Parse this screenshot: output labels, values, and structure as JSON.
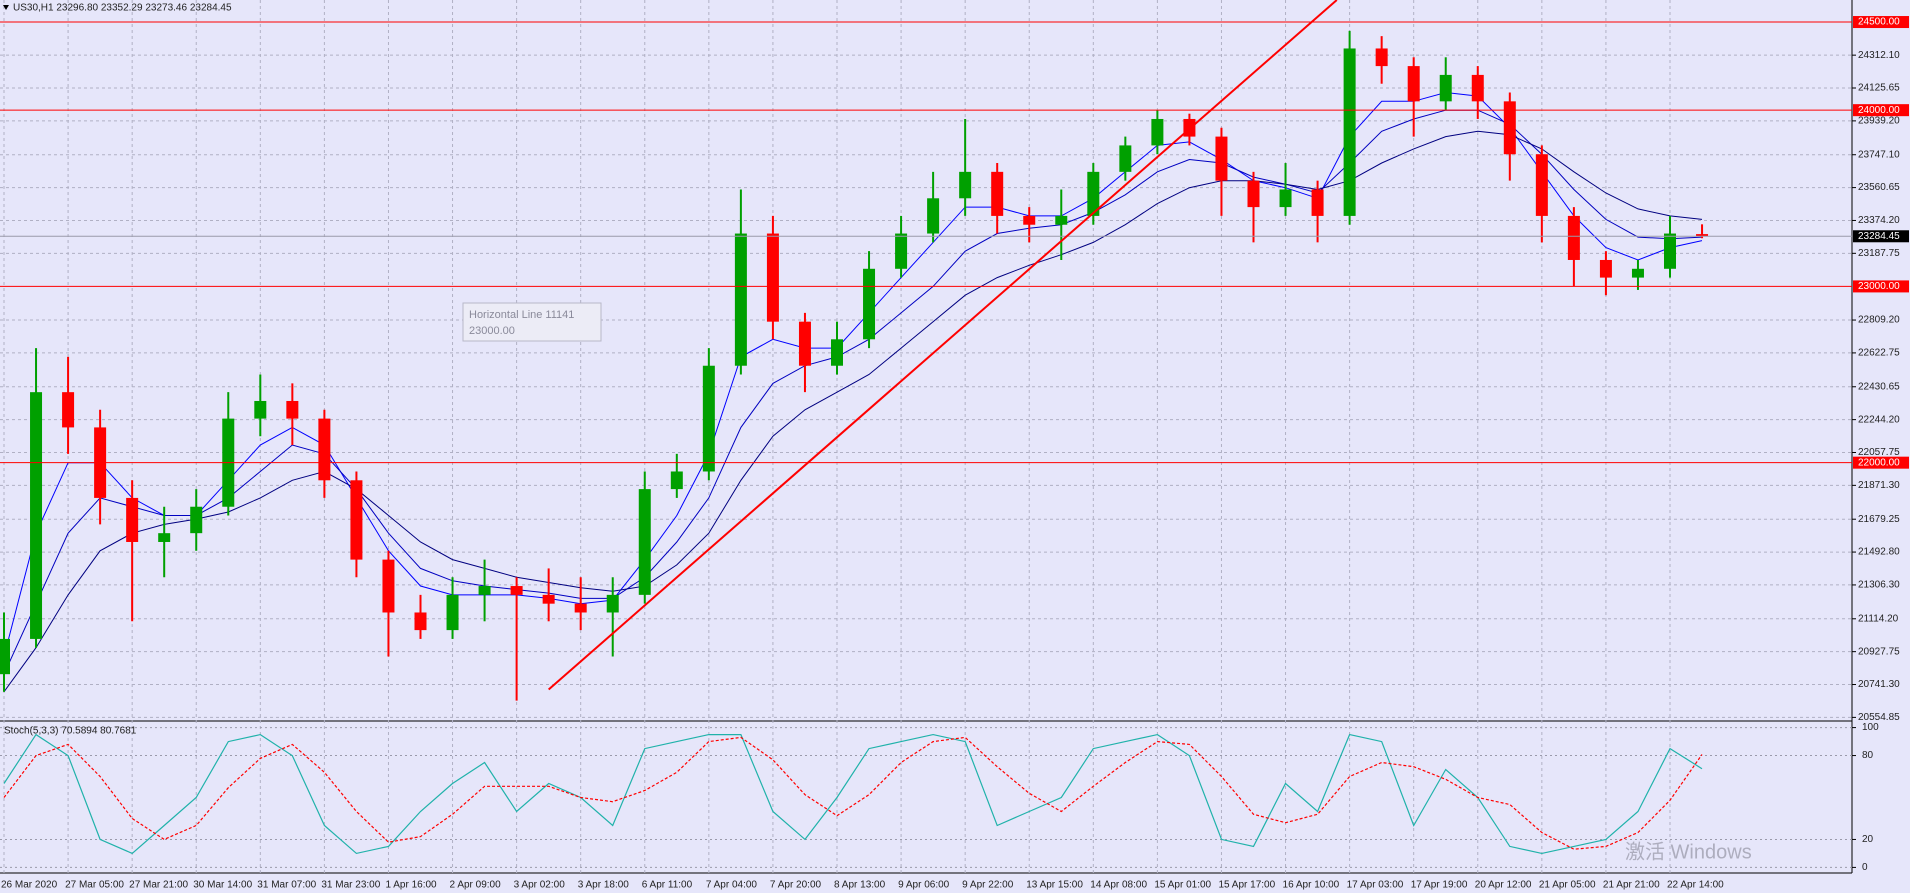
{
  "chart_data": [
    {
      "type": "candlestick",
      "title": "US30,H1  23296.80 23352.29 23273.46 23284.45",
      "categories": [
        "26 Mar 2020",
        null,
        "27 Mar 05:00",
        null,
        "27 Mar 21:00",
        null,
        "30 Mar 14:00",
        null,
        "31 Mar 07:00",
        null,
        "31 Mar 23:00",
        null,
        "1 Apr 16:00",
        null,
        "2 Apr 09:00",
        null,
        "3 Apr 02:00",
        null,
        "3 Apr 18:00",
        null,
        "6 Apr 11:00",
        null,
        "7 Apr 04:00",
        null,
        "7 Apr 20:00",
        null,
        "8 Apr 13:00",
        null,
        "9 Apr 06:00",
        null,
        "9 Apr 22:00",
        null,
        "13 Apr 15:00",
        null,
        "14 Apr 08:00",
        null,
        "15 Apr 01:00",
        null,
        "15 Apr 17:00",
        null,
        "16 Apr 10:00",
        null,
        "17 Apr 03:00",
        null,
        "17 Apr 19:00",
        null,
        "20 Apr 12:00",
        null,
        "21 Apr 05:00",
        null,
        "21 Apr 21:00",
        null,
        "22 Apr 14:00",
        null
      ],
      "open": [
        20800,
        21000,
        22400,
        22200,
        21800,
        21550,
        21600,
        21750,
        22250,
        22350,
        22250,
        21900,
        21450,
        21150,
        21050,
        21250,
        21300,
        21250,
        21200,
        21150,
        21250,
        21850,
        21950,
        22550,
        23300,
        22800,
        22550,
        22700,
        23100,
        23300,
        23500,
        23650,
        23400,
        23350,
        23400,
        23650,
        23800,
        23950,
        23850,
        23600,
        23450,
        23550,
        23400,
        24350,
        24250,
        24050,
        24200,
        24050,
        23750,
        23400,
        23150,
        23050,
        23100,
        23296.8
      ],
      "high": [
        21150,
        22650,
        22600,
        22300,
        21900,
        21750,
        21850,
        22400,
        22500,
        22450,
        22300,
        21950,
        21500,
        21250,
        21350,
        21450,
        21350,
        21400,
        21350,
        21350,
        21950,
        22050,
        22650,
        23550,
        23400,
        22850,
        22800,
        23200,
        23400,
        23650,
        23950,
        23700,
        23450,
        23550,
        23700,
        23850,
        24000,
        23980,
        23900,
        23650,
        23700,
        23600,
        24450,
        24420,
        24300,
        24300,
        24250,
        24100,
        23800,
        23450,
        23200,
        23150,
        23400,
        23352.29
      ],
      "low": [
        20700,
        20950,
        22050,
        21650,
        21100,
        21350,
        21500,
        21700,
        22150,
        22100,
        21800,
        21350,
        20900,
        21000,
        21000,
        21100,
        20650,
        21100,
        21050,
        20900,
        21200,
        21800,
        21900,
        22500,
        22700,
        22400,
        22500,
        22650,
        23050,
        23250,
        23400,
        23300,
        23250,
        23150,
        23350,
        23600,
        23750,
        23800,
        23400,
        23250,
        23400,
        23250,
        23350,
        24150,
        23850,
        24000,
        23950,
        23600,
        23250,
        23000,
        22950,
        22980,
        23050,
        23273.46
      ],
      "close": [
        21000,
        22400,
        22200,
        21800,
        21550,
        21600,
        21750,
        22250,
        22350,
        22250,
        21900,
        21450,
        21150,
        21050,
        21250,
        21300,
        21250,
        21200,
        21150,
        21250,
        21850,
        21950,
        22550,
        23300,
        22800,
        22550,
        22700,
        23100,
        23300,
        23500,
        23650,
        23400,
        23350,
        23400,
        23650,
        23800,
        23950,
        23850,
        23600,
        23450,
        23550,
        23400,
        24350,
        24250,
        24050,
        24200,
        24050,
        23750,
        23400,
        23150,
        23050,
        23100,
        23300,
        23284.45
      ],
      "up_color": "#00a000",
      "down_color": "#ff0000",
      "overlays": [
        {
          "color": "#0000ff",
          "values": [
            20900,
            21600,
            22000,
            22000,
            21800,
            21700,
            21700,
            21900,
            22100,
            22200,
            22100,
            21800,
            21500,
            21300,
            21250,
            21250,
            21250,
            21230,
            21200,
            21220,
            21450,
            21700,
            22050,
            22600,
            22700,
            22650,
            22650,
            22850,
            23050,
            23250,
            23450,
            23450,
            23400,
            23400,
            23500,
            23650,
            23800,
            23820,
            23720,
            23600,
            23560,
            23500,
            23850,
            24050,
            24050,
            24100,
            24080,
            23900,
            23650,
            23400,
            23220,
            23150,
            23220,
            23260
          ]
        },
        {
          "color": "#0000c0",
          "values": [
            20800,
            21200,
            21600,
            21800,
            21750,
            21700,
            21700,
            21800,
            21950,
            22100,
            22050,
            21850,
            21600,
            21400,
            21330,
            21300,
            21280,
            21260,
            21230,
            21230,
            21350,
            21550,
            21800,
            22200,
            22450,
            22550,
            22600,
            22700,
            22850,
            23000,
            23200,
            23300,
            23330,
            23350,
            23420,
            23520,
            23650,
            23720,
            23700,
            23620,
            23580,
            23530,
            23700,
            23880,
            23950,
            24000,
            24000,
            23920,
            23750,
            23550,
            23380,
            23280,
            23270,
            23280
          ]
        },
        {
          "color": "#000080",
          "values": [
            20700,
            20950,
            21250,
            21500,
            21600,
            21650,
            21680,
            21720,
            21800,
            21900,
            21950,
            21850,
            21700,
            21550,
            21450,
            21400,
            21350,
            21320,
            21290,
            21270,
            21300,
            21420,
            21600,
            21900,
            22150,
            22300,
            22400,
            22500,
            22650,
            22800,
            22950,
            23050,
            23120,
            23180,
            23250,
            23350,
            23470,
            23560,
            23600,
            23600,
            23580,
            23550,
            23600,
            23700,
            23780,
            23850,
            23880,
            23860,
            23780,
            23650,
            23530,
            23440,
            23400,
            23380
          ]
        }
      ],
      "ylim": [
        20540,
        24625
      ],
      "yticks": [
        {
          "value": 24312.1,
          "label": "24312.10"
        },
        24125.65,
        {
          "value": 23939.2,
          "label": "23939.20"
        },
        {
          "value": 23747.1,
          "label": "23747.10"
        },
        23560.65,
        {
          "value": 23374.2,
          "label": "23374.20"
        },
        23187.75,
        {
          "value": 22809.2,
          "label": "22809.20"
        },
        22622.75,
        22430.65,
        {
          "value": 22244.2,
          "label": "22244.20"
        },
        22057.75,
        {
          "value": 21871.3,
          "label": "21871.30"
        },
        21679.25,
        {
          "value": 21492.8,
          "label": "21492.80"
        },
        {
          "value": 21306.3,
          "label": "21306.30"
        },
        {
          "value": 21114.2,
          "label": "21114.20"
        },
        20927.75,
        {
          "value": 20741.3,
          "label": "20741.30"
        },
        20554.85
      ],
      "grid": true,
      "hlines": [
        {
          "value": 24500,
          "label": "24500.00"
        },
        {
          "value": 24000,
          "label": "24000.00"
        },
        {
          "value": 23000,
          "label": "23000.00"
        },
        {
          "value": 22000,
          "label": "22000.00"
        }
      ],
      "hline_color": "#ff0000",
      "last_price": 23284.45,
      "trendline": {
        "x": [
          17,
          41.6
        ],
        "y": [
          20713,
          24625
        ],
        "color": "#ff0000"
      },
      "tooltip": {
        "title": "Horizontal Line 11141",
        "text": "23000.00"
      },
      "watermark": "激活 Windows"
    },
    {
      "type": "line",
      "title": "Stoch(5,3,3) 70.5894 80.7681",
      "series": [
        {
          "color": "#20b2aa",
          "values": [
            60,
            95,
            80,
            20,
            10,
            30,
            50,
            90,
            95,
            80,
            30,
            10,
            15,
            40,
            60,
            75,
            40,
            60,
            50,
            30,
            85,
            90,
            95,
            95,
            40,
            20,
            50,
            85,
            90,
            95,
            90,
            30,
            40,
            50,
            85,
            90,
            95,
            80,
            20,
            15,
            60,
            40,
            95,
            90,
            30,
            70,
            50,
            15,
            10,
            15,
            20,
            40,
            85,
            70.5894
          ]
        },
        {
          "color": "#ff0000",
          "dashed": true,
          "values": [
            50,
            80,
            88,
            65,
            35,
            20,
            30,
            57,
            78,
            88,
            68,
            40,
            18,
            22,
            38,
            58,
            58,
            58,
            50,
            47,
            55,
            68,
            90,
            93,
            77,
            52,
            37,
            52,
            75,
            90,
            93,
            72,
            53,
            40,
            58,
            75,
            90,
            88,
            65,
            38,
            32,
            38,
            65,
            75,
            72,
            63,
            50,
            45,
            25,
            13,
            15,
            25,
            48,
            80.7681
          ]
        }
      ],
      "ylim": [
        -4,
        104
      ],
      "yticks": [
        100,
        80,
        20,
        0
      ],
      "grid": true
    }
  ]
}
